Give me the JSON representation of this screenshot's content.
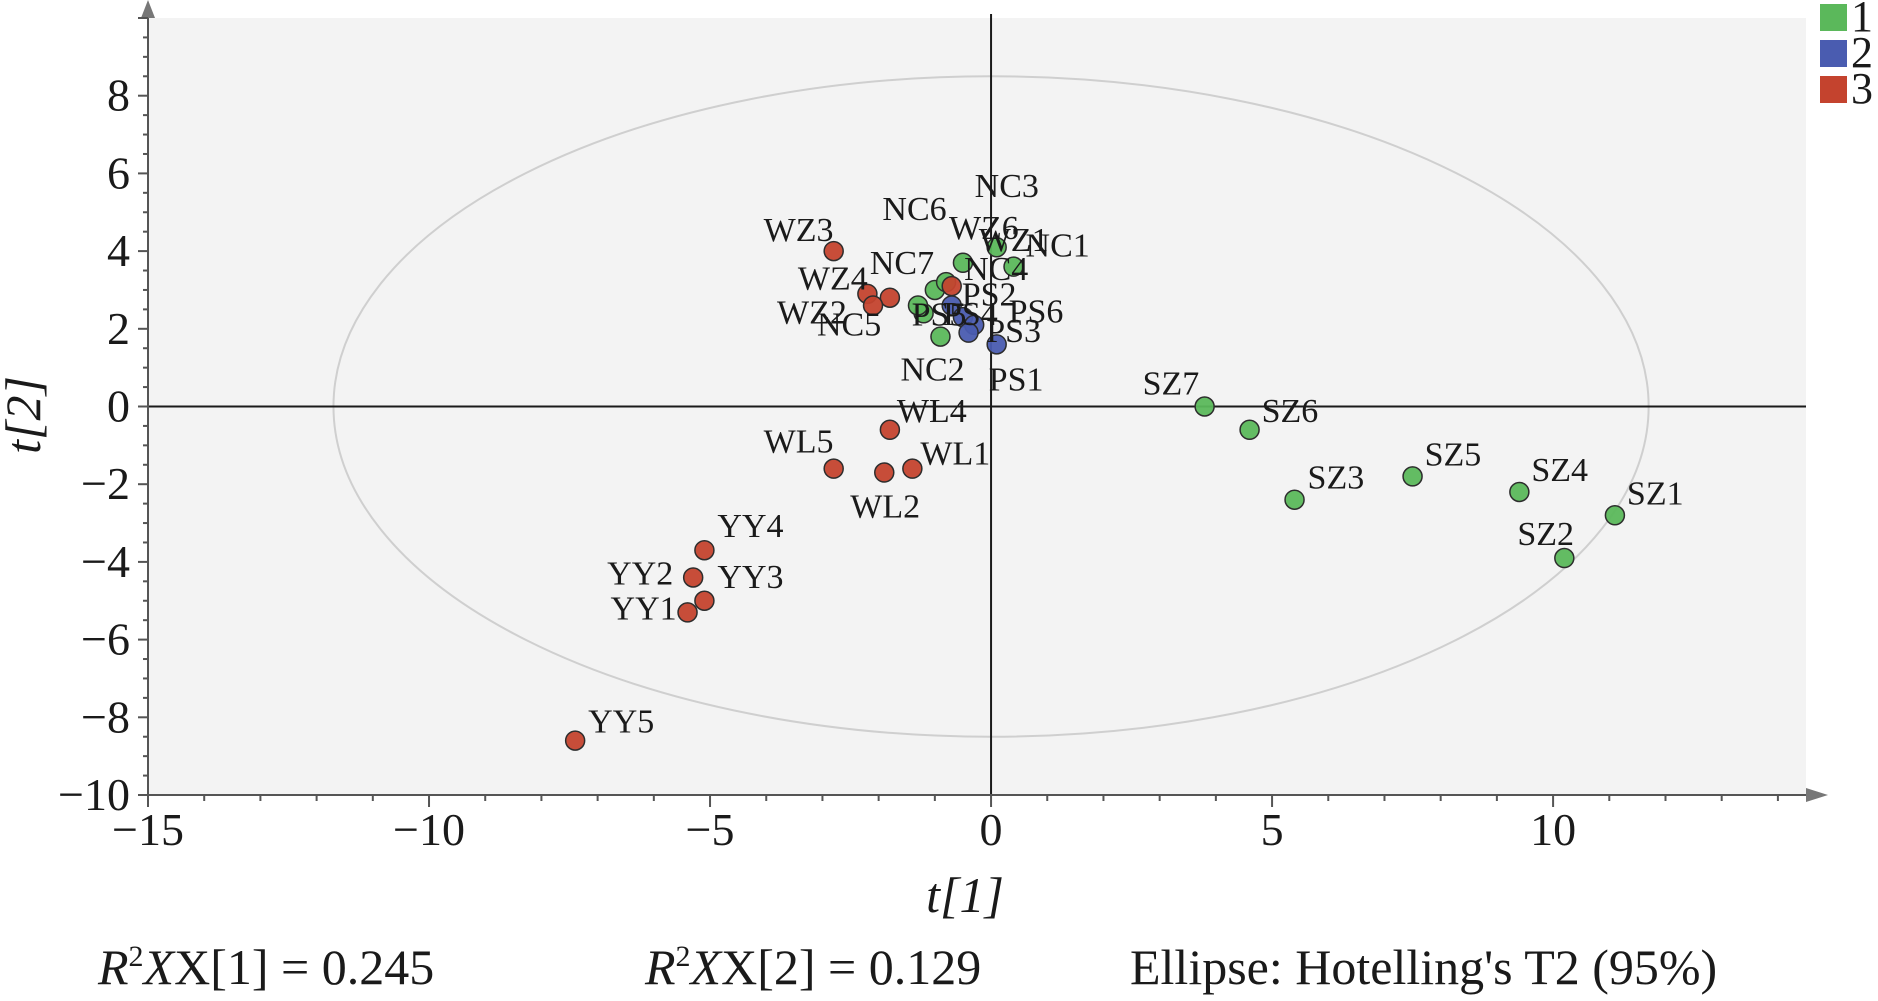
{
  "chart_data": {
    "type": "scatter",
    "xlabel": "t[1]",
    "ylabel": "t[2]",
    "xlim": [
      -15,
      14.5
    ],
    "ylim": [
      -10,
      10
    ],
    "xticks": [
      -15,
      -10,
      -5,
      0,
      5,
      10
    ],
    "yticks": [
      -10,
      -8,
      -6,
      -4,
      -2,
      0,
      2,
      4,
      6,
      8
    ],
    "ellipse": {
      "center": [
        0,
        0
      ],
      "semi_axes": [
        11.7,
        8.5
      ]
    },
    "legend_position": "top-right",
    "series": [
      {
        "name": "1",
        "color": "#5bb85b",
        "points": [
          {
            "label": "NC3",
            "x": 0.1,
            "y": 4.1
          },
          {
            "label": "WZ6",
            "x": -0.5,
            "y": 3.7
          },
          {
            "label": "NC1",
            "x": 0.4,
            "y": 3.6
          },
          {
            "label": "NC7",
            "x": -1.0,
            "y": 3.0
          },
          {
            "label": "NC2",
            "x": -0.9,
            "y": 1.8
          },
          {
            "label": "PS5",
            "x": -1.2,
            "y": 2.4
          },
          {
            "label": "NC5",
            "x": -1.3,
            "y": 2.6
          },
          {
            "label": "NC4",
            "x": -0.8,
            "y": 3.2
          },
          {
            "label": "SZ7",
            "x": 3.8,
            "y": 0.0
          },
          {
            "label": "SZ6",
            "x": 4.6,
            "y": -0.6
          },
          {
            "label": "SZ3",
            "x": 5.4,
            "y": -2.4
          },
          {
            "label": "SZ5",
            "x": 7.5,
            "y": -1.8
          },
          {
            "label": "SZ4",
            "x": 9.4,
            "y": -2.2
          },
          {
            "label": "SZ1",
            "x": 11.1,
            "y": -2.8
          },
          {
            "label": "SZ2",
            "x": 10.2,
            "y": -3.9
          }
        ]
      },
      {
        "name": "2",
        "color": "#4a5cb0",
        "points": [
          {
            "label": "PS2",
            "x": -0.7,
            "y": 2.6
          },
          {
            "label": "PS4",
            "x": -0.5,
            "y": 2.3
          },
          {
            "label": "PS3",
            "x": -0.3,
            "y": 2.1
          },
          {
            "label": "PS6",
            "x": -0.4,
            "y": 1.9
          },
          {
            "label": "PS1",
            "x": 0.1,
            "y": 1.6
          }
        ]
      },
      {
        "name": "3",
        "color": "#c4432e",
        "points": [
          {
            "label": "WZ3",
            "x": -2.8,
            "y": 4.0
          },
          {
            "label": "WZ1",
            "x": -0.7,
            "y": 3.1
          },
          {
            "label": "NC6",
            "x": -2.2,
            "y": 2.9
          },
          {
            "label": "WZ4",
            "x": -1.8,
            "y": 2.8
          },
          {
            "label": "WZ2",
            "x": -2.1,
            "y": 2.6
          },
          {
            "label": "WL4",
            "x": -1.8,
            "y": -0.6
          },
          {
            "label": "WL5",
            "x": -2.8,
            "y": -1.6
          },
          {
            "label": "WL1",
            "x": -1.4,
            "y": -1.6
          },
          {
            "label": "WL2",
            "x": -1.9,
            "y": -1.7
          },
          {
            "label": "YY4",
            "x": -5.1,
            "y": -3.7
          },
          {
            "label": "YY2",
            "x": -5.3,
            "y": -4.4
          },
          {
            "label": "YY3",
            "x": -5.1,
            "y": -5.0
          },
          {
            "label": "YY1",
            "x": -5.4,
            "y": -5.3
          },
          {
            "label": "YY5",
            "x": -7.4,
            "y": -8.6
          }
        ]
      }
    ]
  },
  "footer": {
    "r2x1_label": "X[1] = 0.245",
    "r2x2_label": "X[2] = 0.129",
    "ellipse_note": "Ellipse: Hotelling's T2 (95%)"
  }
}
